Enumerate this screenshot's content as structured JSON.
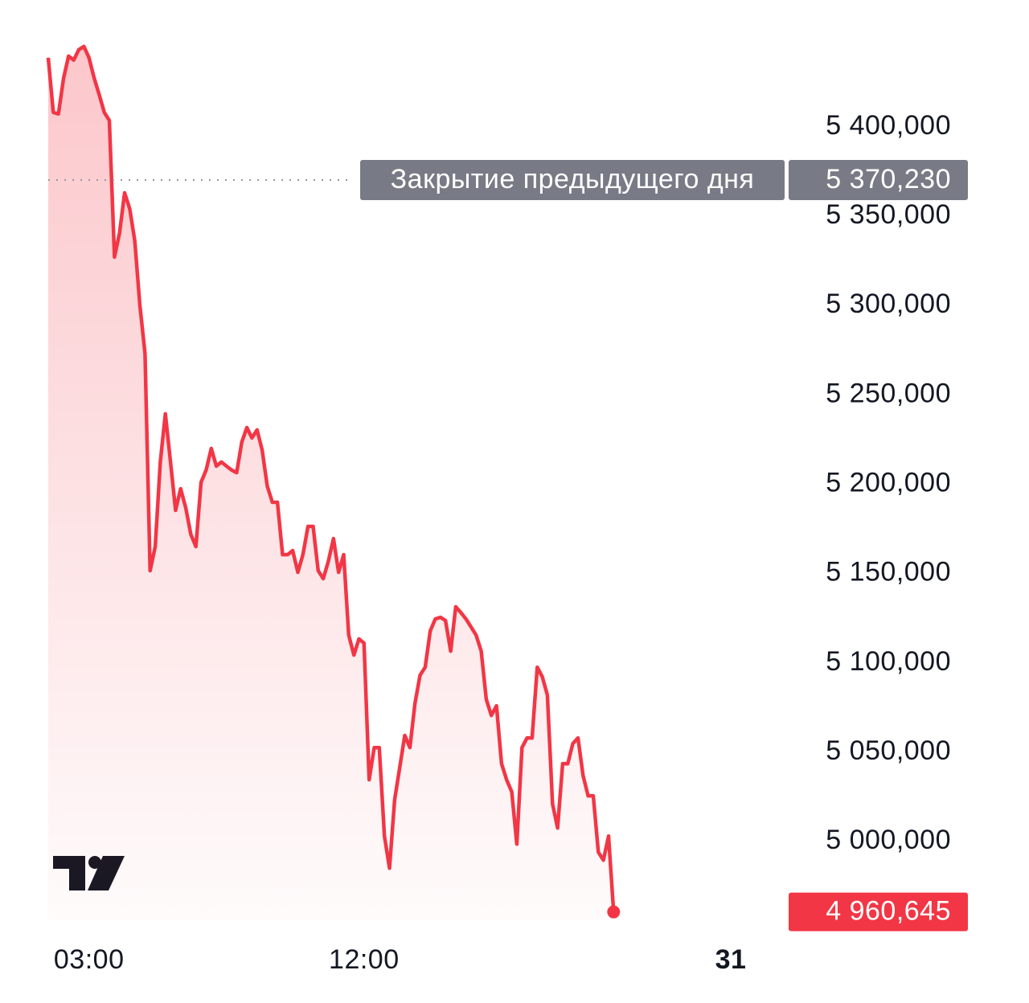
{
  "chart_data": {
    "type": "line",
    "x": [
      100,
      110,
      120,
      130,
      140,
      150,
      160,
      170,
      180,
      190,
      200,
      210,
      220,
      230,
      240,
      250,
      260,
      270,
      280,
      290,
      300,
      310,
      320,
      330,
      340,
      350,
      360,
      370,
      380,
      390,
      400,
      410,
      420,
      430,
      440,
      450,
      460,
      470,
      480,
      490,
      500,
      510,
      520,
      530,
      540,
      550,
      560,
      570,
      580,
      590,
      600,
      610,
      620,
      630,
      640,
      650,
      660,
      670,
      680,
      690,
      700,
      710,
      720,
      730,
      740,
      750,
      760,
      770,
      780,
      790,
      800,
      810,
      820,
      830,
      840,
      850,
      860,
      870,
      880,
      890,
      900,
      910,
      920,
      930,
      940,
      950,
      960,
      970,
      980,
      990,
      1000,
      1010,
      1020,
      1030,
      1040,
      1050,
      1060,
      1070,
      1080,
      1090,
      1100,
      1110,
      1120,
      1130,
      1140,
      1150,
      1160,
      1170,
      1180,
      1190,
      1200,
      1210
    ],
    "series": [
      {
        "color": "#f23645",
        "values": [
          5438700,
          5408100,
          5407200,
          5427000,
          5439600,
          5437400,
          5443200,
          5445000,
          5438700,
          5427500,
          5418000,
          5408100,
          5403600,
          5327100,
          5340600,
          5363100,
          5354100,
          5336100,
          5300100,
          5273100,
          5151600,
          5165100,
          5212400,
          5239400,
          5212400,
          5185400,
          5197500,
          5186700,
          5171900,
          5165100,
          5201100,
          5207900,
          5220000,
          5210100,
          5212400,
          5210100,
          5207900,
          5206500,
          5223600,
          5231700,
          5225900,
          5230400,
          5219100,
          5198900,
          5189900,
          5189900,
          5160600,
          5160600,
          5162900,
          5150700,
          5160600,
          5176400,
          5176400,
          5151600,
          5147100,
          5157000,
          5169600,
          5150700,
          5160600,
          5115600,
          5104400,
          5113400,
          5111100,
          5034600,
          5052600,
          5052600,
          5003100,
          4985100,
          5023400,
          5041400,
          5059400,
          5052600,
          5077400,
          5093100,
          5097600,
          5117900,
          5124600,
          5125500,
          5123700,
          5106600,
          5131400,
          5128200,
          5124600,
          5120100,
          5115600,
          5106600,
          5079600,
          5070600,
          5076000,
          5043600,
          5034600,
          5027800,
          4998600,
          5052600,
          5058000,
          5058000,
          5097600,
          5092200,
          5082000,
          5021100,
          5007600,
          5043600,
          5043600,
          5054900,
          5058000,
          5036900,
          5025600,
          5025600,
          4994100,
          4989600,
          5003100,
          4960645
        ]
      }
    ],
    "xlim": [
      100,
      1552
    ],
    "xticks": [
      {
        "value": 180,
        "label": "03:00"
      },
      {
        "value": 720,
        "label": "12:00"
      },
      {
        "value": 1440,
        "label": "31",
        "bold": true
      }
    ],
    "ylim": [
      4956000,
      5453000
    ],
    "yticks": [
      {
        "value": 5000000,
        "label": "5 000,000"
      },
      {
        "value": 5050000,
        "label": "5 050,000"
      },
      {
        "value": 5100000,
        "label": "5 100,000"
      },
      {
        "value": 5150000,
        "label": "5 150,000"
      },
      {
        "value": 5200000,
        "label": "5 200,000"
      },
      {
        "value": 5250000,
        "label": "5 250,000"
      },
      {
        "value": 5300000,
        "label": "5 300,000"
      },
      {
        "value": 5350000,
        "label": "5 350,000"
      },
      {
        "value": 5400000,
        "label": "5 400,000"
      }
    ],
    "reference_line": {
      "label": "Закрытие предыдущего дня",
      "value": 5370230,
      "value_label": "5 370,230",
      "color": "#787b86"
    },
    "last_price": {
      "value": 4960645,
      "label": "4 960,645"
    },
    "area_fill": true
  }
}
